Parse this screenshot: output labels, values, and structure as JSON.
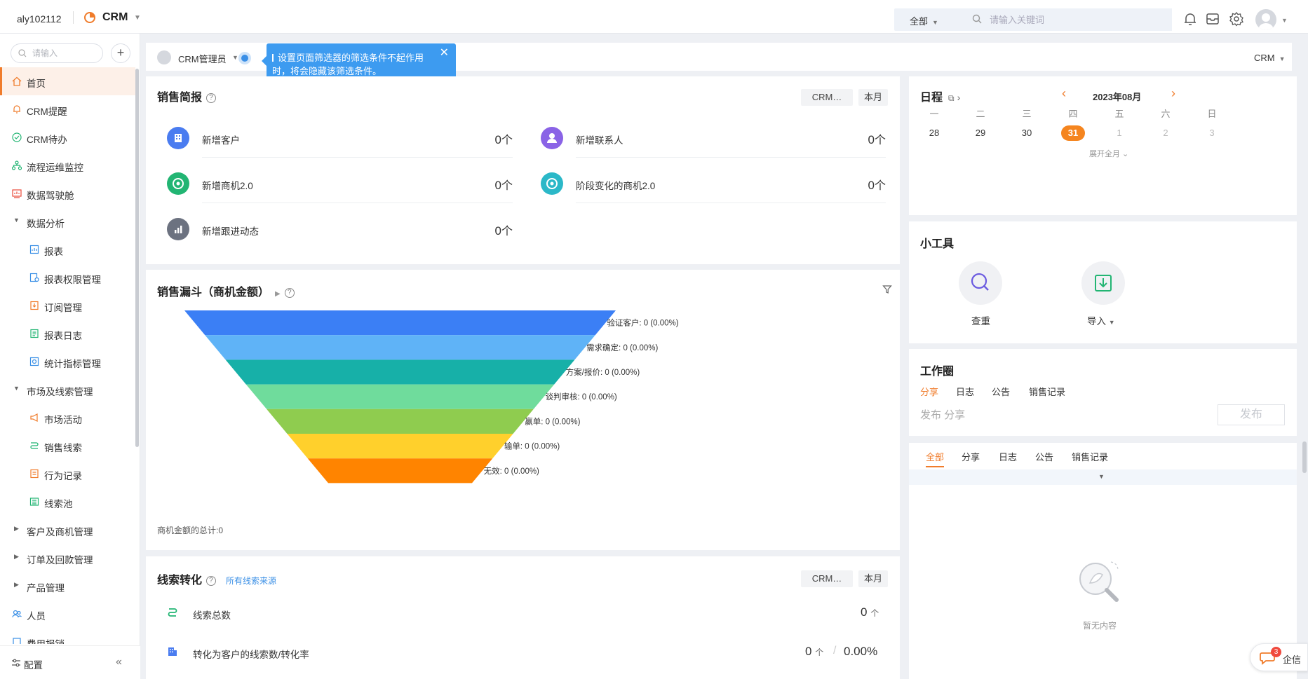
{
  "topbar": {
    "user": "aly102112",
    "app_name": "CRM",
    "scope": "全部",
    "search_placeholder": "请输入关键词"
  },
  "sidebar": {
    "search_placeholder": "请输入",
    "add_label": "+",
    "items": [
      {
        "label": "首页",
        "icon": "home-icon"
      },
      {
        "label": "CRM提醒",
        "icon": "bell-icon"
      },
      {
        "label": "CRM待办",
        "icon": "check-circle-icon"
      },
      {
        "label": "流程运维监控",
        "icon": "flow-icon"
      },
      {
        "label": "数据驾驶舱",
        "icon": "dashboard-icon"
      },
      {
        "label": "数据分析",
        "icon": "caret-down-icon"
      },
      {
        "label": "报表",
        "icon": "report-icon"
      },
      {
        "label": "报表权限管理",
        "icon": "report-permission-icon"
      },
      {
        "label": "订阅管理",
        "icon": "subscription-icon"
      },
      {
        "label": "报表日志",
        "icon": "report-log-icon"
      },
      {
        "label": "统计指标管理",
        "icon": "statistics-icon"
      },
      {
        "label": "市场及线索管理",
        "icon": "caret-down-icon"
      },
      {
        "label": "市场活动",
        "icon": "megaphone-icon"
      },
      {
        "label": "销售线索",
        "icon": "lead-icon"
      },
      {
        "label": "行为记录",
        "icon": "record-icon"
      },
      {
        "label": "线索池",
        "icon": "pool-icon"
      },
      {
        "label": "客户及商机管理",
        "icon": "caret-right-icon"
      },
      {
        "label": "订单及回款管理",
        "icon": "caret-right-icon"
      },
      {
        "label": "产品管理",
        "icon": "caret-right-icon"
      },
      {
        "label": "人员",
        "icon": "people-icon"
      },
      {
        "label": "费用报销",
        "icon": "expense-icon"
      }
    ],
    "config_label": "配置",
    "collapse_label": "«"
  },
  "filterbar": {
    "owner": "CRM管理员",
    "right_label": "CRM"
  },
  "tooltip": {
    "text": "设置页面筛选器的筛选条件不起作用时，将会隐藏该筛选条件。",
    "close": "✕"
  },
  "sales_brief": {
    "title": "销售简报",
    "help": "?",
    "filter1": "CRM…",
    "filter2": "本月",
    "stats": [
      {
        "label": "新增客户",
        "value": "0",
        "unit": "个",
        "color": "#4a7cf0"
      },
      {
        "label": "新增联系人",
        "value": "0",
        "unit": "个",
        "color": "#8a63e6"
      },
      {
        "label": "新增商机2.0",
        "value": "0",
        "unit": "个",
        "color": "#22b573"
      },
      {
        "label": "阶段变化的商机2.0",
        "value": "0",
        "unit": "个",
        "color": "#2bb8c8"
      },
      {
        "label": "新增跟进动态",
        "value": "0",
        "unit": "个",
        "color": "#6c7280"
      }
    ]
  },
  "funnel": {
    "title": "销售漏斗（商机金额）",
    "help": "?",
    "total": "商机金额的总计:0",
    "stages": [
      {
        "label": "验证客户: 0 (0.00%)",
        "color": "#3b7ff5"
      },
      {
        "label": "需求确定: 0 (0.00%)",
        "color": "#5fb3f7"
      },
      {
        "label": "方案/报价: 0 (0.00%)",
        "color": "#17b0a8"
      },
      {
        "label": "谈判审核: 0 (0.00%)",
        "color": "#6fdc9c"
      },
      {
        "label": "赢单: 0 (0.00%)",
        "color": "#8fcc4f"
      },
      {
        "label": "输单: 0 (0.00%)",
        "color": "#ffd02c"
      },
      {
        "label": "无效: 0 (0.00%)",
        "color": "#ff8400"
      }
    ]
  },
  "lead_conversion": {
    "title": "线索转化",
    "help": "?",
    "source_link": "所有线索来源",
    "filter1": "CRM…",
    "filter2": "本月",
    "rows": [
      {
        "label": "线索总数",
        "value": "0",
        "unit": "个"
      },
      {
        "label": "转化为客户的线索数/转化率",
        "value": "0",
        "unit": "个",
        "rate": "0.00%"
      }
    ]
  },
  "schedule": {
    "title": "日程",
    "month": "2023年08月",
    "weekdays": [
      "一",
      "二",
      "三",
      "四",
      "五",
      "六",
      "日"
    ],
    "days": [
      {
        "d": "28",
        "muted": false
      },
      {
        "d": "29",
        "muted": false
      },
      {
        "d": "30",
        "muted": false
      },
      {
        "d": "31",
        "today": true
      },
      {
        "d": "1",
        "muted": true
      },
      {
        "d": "2",
        "muted": true
      },
      {
        "d": "3",
        "muted": true
      }
    ],
    "expand": "展开全月"
  },
  "tools": {
    "title": "小工具",
    "items": [
      {
        "label": "查重",
        "icon": "search-icon"
      },
      {
        "label": "导入",
        "icon": "import-icon"
      }
    ]
  },
  "workcircle": {
    "title": "工作圈",
    "tabs": [
      "分享",
      "日志",
      "公告",
      "销售记录"
    ],
    "placeholder": "发布 分享",
    "publish": "发布"
  },
  "feed": {
    "tabs": [
      "全部",
      "分享",
      "日志",
      "公告",
      "销售记录"
    ],
    "empty": "暂无内容"
  },
  "qixin": {
    "badge": "3",
    "label": "企信"
  }
}
